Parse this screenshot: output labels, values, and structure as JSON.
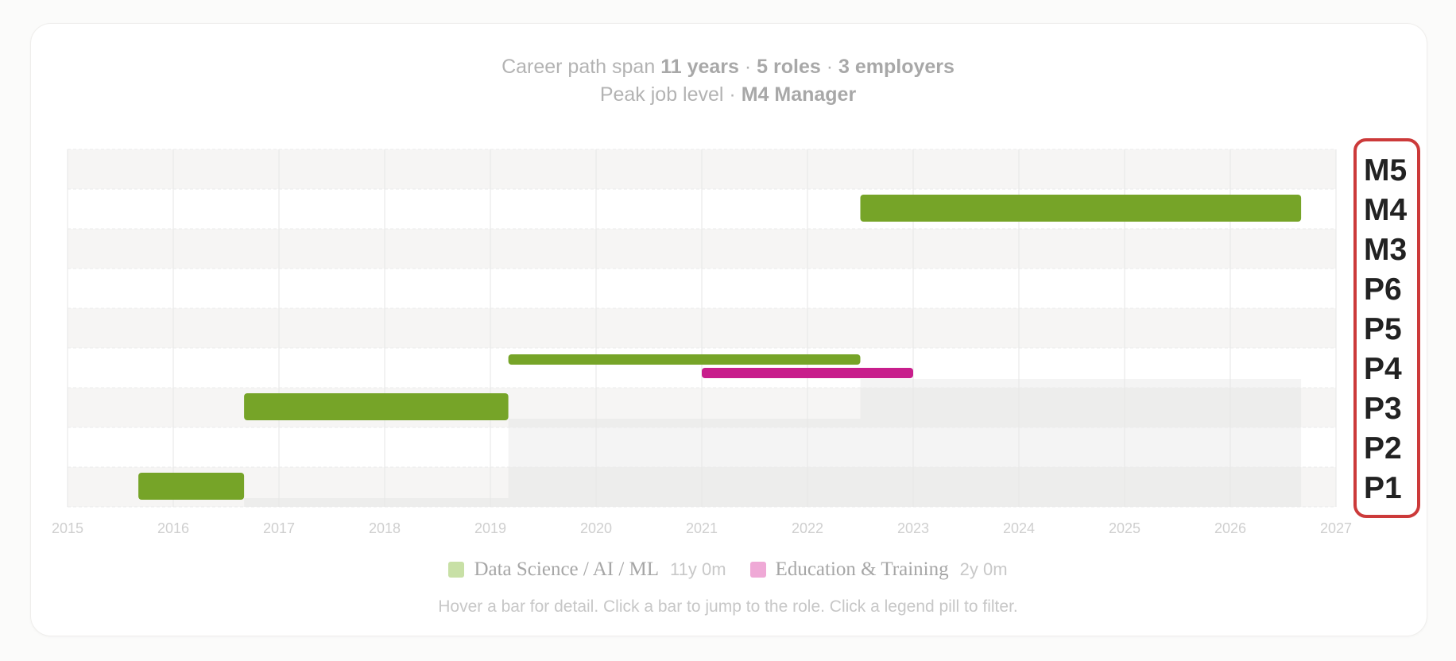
{
  "summary": {
    "line1_prefix": "Career path span",
    "span": "11 years",
    "roles": "5 roles",
    "employers": "3 employers",
    "sep": "·",
    "line2_prefix": "Peak job level",
    "peak": "M4 Manager"
  },
  "legend": [
    {
      "label": "Data Science / AI / ML",
      "duration": "11y 0m",
      "color": "#c8e0a6"
    },
    {
      "label": "Education & Training",
      "duration": "2y 0m",
      "color": "#efa9d6"
    }
  ],
  "hint": "Hover a bar for detail. Click a bar to jump to the role. Click a legend pill to filter.",
  "colors": {
    "data_science": "#76a428",
    "education": "#c81e8c",
    "highlight_box": "#cc3a3a",
    "band_shade": "#f6f5f4",
    "area_fill": "#d9d9d9"
  },
  "chart_data": {
    "type": "gantt",
    "x_axis": {
      "min": 2015,
      "max": 2027,
      "ticks": [
        2015,
        2016,
        2017,
        2018,
        2019,
        2020,
        2021,
        2022,
        2023,
        2024,
        2025,
        2026,
        2027
      ]
    },
    "levels": [
      "P1",
      "P2",
      "P3",
      "P4",
      "P5",
      "P6",
      "M3",
      "M4",
      "M5"
    ],
    "bars": [
      {
        "level": "P1",
        "start": 2015.67,
        "end": 2016.67,
        "category": "Data Science / AI / ML"
      },
      {
        "level": "P3",
        "start": 2016.67,
        "end": 2019.17,
        "category": "Data Science / AI / ML"
      },
      {
        "level": "P4",
        "start": 2019.17,
        "end": 2022.5,
        "category": "Data Science / AI / ML",
        "slot": "upper"
      },
      {
        "level": "P4",
        "start": 2021.0,
        "end": 2023.0,
        "category": "Education & Training",
        "slot": "lower"
      },
      {
        "level": "M4",
        "start": 2022.5,
        "end": 2026.67,
        "category": "Data Science / AI / ML"
      }
    ],
    "grid": true
  }
}
